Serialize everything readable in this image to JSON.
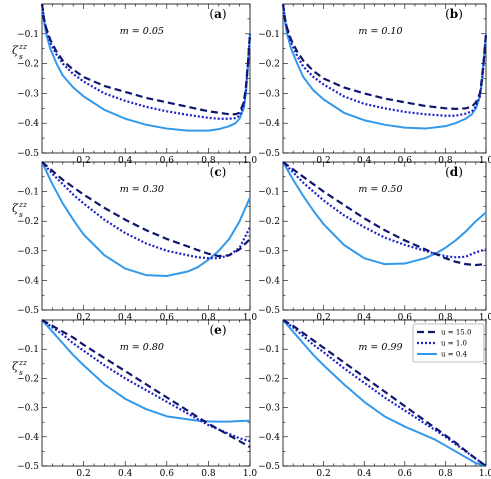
{
  "figure": {
    "ylabel": "ζzz s",
    "ylabel_main": "ζ",
    "ylabel_sup": "zz",
    "ylabel_sub": "s"
  },
  "colors": {
    "u15": "#0f176e",
    "u1": "#1c22c8",
    "u04": "#3399ea"
  },
  "legend": {
    "entries": [
      "u = 15.0",
      "u = 1.0",
      "u = 0.4"
    ]
  },
  "chart_data": [
    {
      "type": "line",
      "panel_label": "(a)",
      "m_label": "m = 0.05",
      "xlim": [
        0,
        1
      ],
      "ylim": [
        -0.5,
        0
      ],
      "xticks": [
        0.2,
        0.4,
        0.6,
        0.8,
        1.0
      ],
      "xtick_labels": [
        "0.2",
        "0.4",
        "0.6",
        "0.8",
        "1.0"
      ],
      "yticks": [
        -0.1,
        -0.2,
        -0.3,
        -0.4,
        -0.5
      ],
      "ytick_labels": [
        "−0.1",
        "−0.2",
        "−0.3",
        "−0.4",
        "−0.5"
      ],
      "x": [
        0,
        0.01,
        0.02,
        0.04,
        0.07,
        0.1,
        0.15,
        0.2,
        0.3,
        0.4,
        0.5,
        0.6,
        0.7,
        0.8,
        0.85,
        0.9,
        0.93,
        0.95,
        0.97,
        0.98,
        0.99,
        1.0
      ],
      "series": [
        {
          "name": "u = 15.0",
          "values": [
            0.0,
            -0.05,
            -0.08,
            -0.12,
            -0.16,
            -0.19,
            -0.22,
            -0.245,
            -0.275,
            -0.295,
            -0.315,
            -0.33,
            -0.345,
            -0.36,
            -0.365,
            -0.37,
            -0.37,
            -0.365,
            -0.33,
            -0.28,
            -0.2,
            -0.1
          ]
        },
        {
          "name": "u = 1.0",
          "values": [
            0.0,
            -0.05,
            -0.085,
            -0.13,
            -0.17,
            -0.2,
            -0.235,
            -0.26,
            -0.3,
            -0.325,
            -0.345,
            -0.36,
            -0.372,
            -0.382,
            -0.385,
            -0.385,
            -0.383,
            -0.375,
            -0.34,
            -0.29,
            -0.2,
            -0.1
          ]
        },
        {
          "name": "u = 0.4",
          "values": [
            0.0,
            -0.06,
            -0.1,
            -0.15,
            -0.2,
            -0.24,
            -0.28,
            -0.31,
            -0.355,
            -0.385,
            -0.405,
            -0.418,
            -0.425,
            -0.425,
            -0.42,
            -0.41,
            -0.4,
            -0.385,
            -0.35,
            -0.3,
            -0.21,
            -0.1
          ]
        }
      ]
    },
    {
      "type": "line",
      "panel_label": "(b)",
      "m_label": "m = 0.10",
      "xlim": [
        0,
        1
      ],
      "ylim": [
        -0.5,
        0
      ],
      "xticks": [
        0.2,
        0.4,
        0.6,
        0.8,
        1.0
      ],
      "xtick_labels": [
        "0.2",
        "0.4",
        "0.6",
        "0.8",
        "1.0"
      ],
      "yticks": [
        -0.1,
        -0.2,
        -0.3,
        -0.4,
        -0.5
      ],
      "ytick_labels": [
        "−0.1",
        "−0.2",
        "−0.3",
        "−0.4",
        "−0.5"
      ],
      "x": [
        0,
        0.01,
        0.02,
        0.04,
        0.07,
        0.1,
        0.15,
        0.2,
        0.3,
        0.4,
        0.5,
        0.6,
        0.7,
        0.8,
        0.85,
        0.9,
        0.93,
        0.95,
        0.97,
        0.98,
        0.99,
        1.0
      ],
      "series": [
        {
          "name": "u = 15.0",
          "values": [
            0.0,
            -0.05,
            -0.08,
            -0.12,
            -0.16,
            -0.19,
            -0.225,
            -0.25,
            -0.28,
            -0.3,
            -0.317,
            -0.33,
            -0.342,
            -0.35,
            -0.352,
            -0.35,
            -0.345,
            -0.33,
            -0.3,
            -0.25,
            -0.18,
            -0.1
          ]
        },
        {
          "name": "u = 1.0",
          "values": [
            0.0,
            -0.05,
            -0.085,
            -0.13,
            -0.175,
            -0.21,
            -0.245,
            -0.27,
            -0.31,
            -0.335,
            -0.35,
            -0.362,
            -0.37,
            -0.375,
            -0.375,
            -0.368,
            -0.36,
            -0.345,
            -0.31,
            -0.26,
            -0.19,
            -0.1
          ]
        },
        {
          "name": "u = 0.4",
          "values": [
            0.0,
            -0.06,
            -0.1,
            -0.15,
            -0.2,
            -0.245,
            -0.29,
            -0.32,
            -0.365,
            -0.39,
            -0.405,
            -0.415,
            -0.418,
            -0.41,
            -0.4,
            -0.385,
            -0.37,
            -0.35,
            -0.31,
            -0.26,
            -0.18,
            -0.1
          ]
        }
      ]
    },
    {
      "type": "line",
      "panel_label": "(c)",
      "m_label": "m = 0.30",
      "xlim": [
        0,
        1
      ],
      "ylim": [
        -0.5,
        0
      ],
      "xticks": [
        0.2,
        0.4,
        0.6,
        0.8,
        1.0
      ],
      "xtick_labels": [
        "0.2",
        "0.4",
        "0.6",
        "0.8",
        "1.0"
      ],
      "yticks": [
        -0.1,
        -0.2,
        -0.3,
        -0.4,
        -0.5
      ],
      "ytick_labels": [
        "−0.1",
        "−0.2",
        "−0.3",
        "−0.4",
        "−0.5"
      ],
      "x": [
        0,
        0.05,
        0.1,
        0.15,
        0.2,
        0.3,
        0.4,
        0.5,
        0.6,
        0.7,
        0.75,
        0.8,
        0.85,
        0.9,
        0.95,
        1.0
      ],
      "series": [
        {
          "name": "u = 15.0",
          "values": [
            0.0,
            -0.03,
            -0.06,
            -0.085,
            -0.11,
            -0.155,
            -0.195,
            -0.23,
            -0.26,
            -0.285,
            -0.298,
            -0.31,
            -0.318,
            -0.315,
            -0.295,
            -0.26
          ]
        },
        {
          "name": "u = 1.0",
          "values": [
            0.0,
            -0.04,
            -0.075,
            -0.11,
            -0.14,
            -0.195,
            -0.24,
            -0.275,
            -0.3,
            -0.315,
            -0.322,
            -0.325,
            -0.325,
            -0.315,
            -0.29,
            -0.22
          ]
        },
        {
          "name": "u = 0.4",
          "values": [
            0.0,
            -0.075,
            -0.14,
            -0.195,
            -0.245,
            -0.315,
            -0.36,
            -0.382,
            -0.385,
            -0.37,
            -0.355,
            -0.33,
            -0.3,
            -0.26,
            -0.2,
            -0.12
          ]
        }
      ]
    },
    {
      "type": "line",
      "panel_label": "(d)",
      "m_label": "m = 0.50",
      "xlim": [
        0,
        1
      ],
      "ylim": [
        -0.5,
        0
      ],
      "xticks": [
        0.2,
        0.4,
        0.6,
        0.8,
        1.0
      ],
      "xtick_labels": [
        "0.2",
        "0.4",
        "0.6",
        "0.8",
        "1.0"
      ],
      "yticks": [
        -0.1,
        -0.2,
        -0.3,
        -0.4,
        -0.5
      ],
      "ytick_labels": [
        "−0.1",
        "−0.2",
        "−0.3",
        "−0.4",
        "−0.5"
      ],
      "x": [
        0,
        0.05,
        0.1,
        0.15,
        0.2,
        0.3,
        0.4,
        0.5,
        0.6,
        0.7,
        0.75,
        0.8,
        0.85,
        0.9,
        0.95,
        1.0
      ],
      "series": [
        {
          "name": "u = 15.0",
          "values": [
            0.0,
            -0.025,
            -0.05,
            -0.075,
            -0.1,
            -0.145,
            -0.19,
            -0.23,
            -0.265,
            -0.295,
            -0.31,
            -0.325,
            -0.337,
            -0.345,
            -0.348,
            -0.345
          ]
        },
        {
          "name": "u = 1.0",
          "values": [
            0.0,
            -0.035,
            -0.07,
            -0.1,
            -0.13,
            -0.18,
            -0.22,
            -0.255,
            -0.28,
            -0.3,
            -0.31,
            -0.318,
            -0.322,
            -0.32,
            -0.305,
            -0.295
          ]
        },
        {
          "name": "u = 0.4",
          "values": [
            0.0,
            -0.06,
            -0.115,
            -0.165,
            -0.21,
            -0.28,
            -0.325,
            -0.345,
            -0.343,
            -0.325,
            -0.31,
            -0.29,
            -0.265,
            -0.235,
            -0.2,
            -0.17
          ]
        }
      ]
    },
    {
      "type": "line",
      "panel_label": "(e)",
      "m_label": "m = 0.80",
      "xlim": [
        0,
        1
      ],
      "ylim": [
        -0.5,
        0
      ],
      "xticks": [
        0.2,
        0.4,
        0.6,
        0.8,
        1.0
      ],
      "xtick_labels": [
        "0.2",
        "0.4",
        "0.6",
        "0.8",
        "1.0"
      ],
      "yticks": [
        -0.1,
        -0.2,
        -0.3,
        -0.4,
        -0.5
      ],
      "ytick_labels": [
        "−0.1",
        "−0.2",
        "−0.3",
        "−0.4",
        "−0.5"
      ],
      "x": [
        0,
        0.05,
        0.1,
        0.15,
        0.2,
        0.3,
        0.4,
        0.5,
        0.6,
        0.7,
        0.75,
        0.8,
        0.85,
        0.9,
        0.95,
        1.0
      ],
      "series": [
        {
          "name": "u = 15.0",
          "values": [
            0.0,
            -0.02,
            -0.04,
            -0.06,
            -0.085,
            -0.13,
            -0.175,
            -0.22,
            -0.265,
            -0.31,
            -0.333,
            -0.355,
            -0.375,
            -0.395,
            -0.415,
            -0.435
          ]
        },
        {
          "name": "u = 1.0",
          "values": [
            0.0,
            -0.025,
            -0.05,
            -0.08,
            -0.105,
            -0.155,
            -0.2,
            -0.24,
            -0.28,
            -0.32,
            -0.34,
            -0.36,
            -0.375,
            -0.39,
            -0.405,
            -0.415
          ]
        },
        {
          "name": "u = 0.4",
          "values": [
            0.0,
            -0.04,
            -0.08,
            -0.12,
            -0.155,
            -0.22,
            -0.27,
            -0.305,
            -0.33,
            -0.34,
            -0.345,
            -0.347,
            -0.348,
            -0.348,
            -0.346,
            -0.345
          ]
        }
      ]
    },
    {
      "type": "line",
      "panel_label": "",
      "m_label": "m = 0.99",
      "xlim": [
        0,
        1
      ],
      "ylim": [
        -0.5,
        0
      ],
      "xticks": [
        0.2,
        0.4,
        0.6,
        0.8,
        1.0
      ],
      "xtick_labels": [
        "0.2",
        "0.4",
        "0.6",
        "0.8",
        "1.0"
      ],
      "yticks": [
        -0.1,
        -0.2,
        -0.3,
        -0.4,
        -0.5
      ],
      "ytick_labels": [
        "−0.1",
        "−0.2",
        "−0.3",
        "−0.4",
        "−0.5"
      ],
      "x": [
        0,
        0.05,
        0.1,
        0.15,
        0.2,
        0.3,
        0.4,
        0.5,
        0.6,
        0.7,
        0.75,
        0.8,
        0.85,
        0.9,
        0.95,
        1.0
      ],
      "series": [
        {
          "name": "u = 15.0",
          "values": [
            0.0,
            -0.02,
            -0.045,
            -0.07,
            -0.095,
            -0.145,
            -0.195,
            -0.245,
            -0.295,
            -0.345,
            -0.37,
            -0.395,
            -0.42,
            -0.448,
            -0.475,
            -0.5
          ]
        },
        {
          "name": "u = 1.0",
          "values": [
            0.0,
            -0.025,
            -0.055,
            -0.085,
            -0.11,
            -0.165,
            -0.215,
            -0.265,
            -0.31,
            -0.355,
            -0.377,
            -0.4,
            -0.425,
            -0.45,
            -0.475,
            -0.5
          ]
        },
        {
          "name": "u = 0.4",
          "values": [
            0.0,
            -0.04,
            -0.08,
            -0.12,
            -0.155,
            -0.22,
            -0.28,
            -0.33,
            -0.365,
            -0.395,
            -0.41,
            -0.43,
            -0.45,
            -0.47,
            -0.49,
            -0.5
          ]
        }
      ]
    }
  ]
}
